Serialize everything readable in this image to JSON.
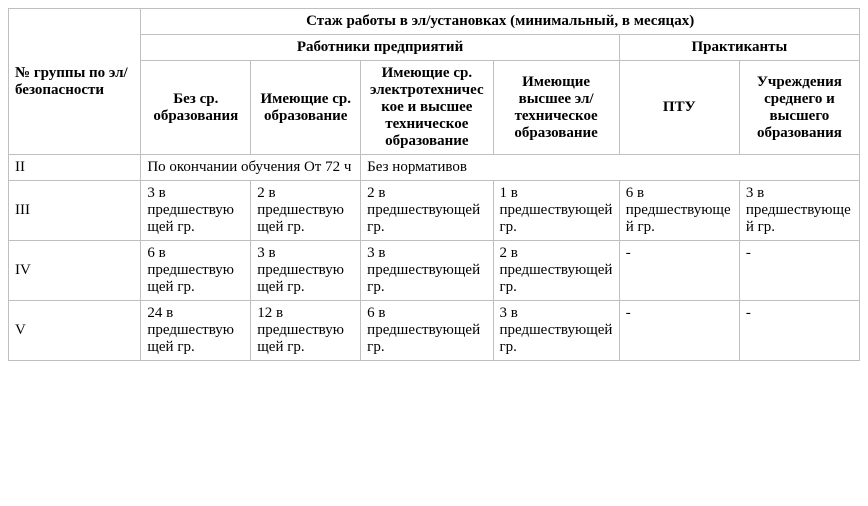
{
  "table": {
    "columns": [
      "col0",
      "col1",
      "col2",
      "col3",
      "col4",
      "col5",
      "col6"
    ],
    "header": {
      "rowspan_label": "№ группы по эл/безопасности",
      "top_span": "Стаж работы в эл/установках (минимальный, в месяцах)",
      "group_workers": "Работники предприятий",
      "group_interns": "Практиканты",
      "sub": {
        "no_edu": "Без ср. образования",
        "has_sec_edu": "Имеющие ср. образование",
        "has_sec_elec_higher_tech": "Имеющие ср. электротехническое и высшее техническое образование",
        "has_higher_elec_tech": "Имеющие высшее эл/техническое образование",
        "ptu": "ПТУ",
        "inst_sec_higher": "Учреждения среднего и высшего образования"
      }
    },
    "rows": [
      {
        "label": "II",
        "cells": [
          {
            "text": "По окончании обучения От 72 ч",
            "colspan": 2
          },
          {
            "text": "Без нормативов",
            "colspan": 4
          }
        ]
      },
      {
        "label": "III",
        "cells": [
          {
            "text": "3 в предшествующей гр."
          },
          {
            "text": "2 в предшествующей гр."
          },
          {
            "text": "2 в предшествующей гр."
          },
          {
            "text": "1 в предшествующей гр."
          },
          {
            "text": "6 в предшествующей гр."
          },
          {
            "text": "3 в предшествующей гр."
          }
        ]
      },
      {
        "label": "IV",
        "cells": [
          {
            "text": "6 в предшествующей гр."
          },
          {
            "text": "3 в предшествующей гр."
          },
          {
            "text": "3 в предшествующей гр."
          },
          {
            "text": "2 в предшествующей гр."
          },
          {
            "text": "-"
          },
          {
            "text": "-"
          }
        ]
      },
      {
        "label": "V",
        "cells": [
          {
            "text": "24 в предшествующей гр."
          },
          {
            "text": "12 в предшествующей гр."
          },
          {
            "text": "6 в предшествующей гр."
          },
          {
            "text": "3 в предшествующей гр."
          },
          {
            "text": "-"
          },
          {
            "text": "-"
          }
        ]
      }
    ]
  }
}
